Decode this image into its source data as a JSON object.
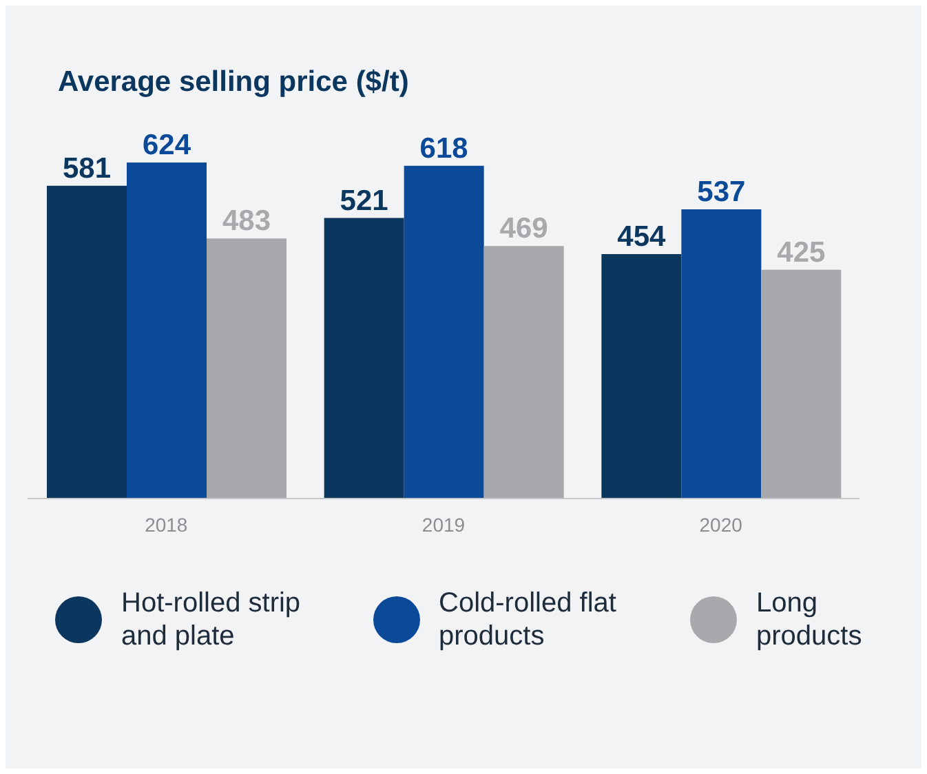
{
  "chart_data": {
    "type": "bar",
    "title": "Average selling price ($/t)",
    "categories": [
      "2018",
      "2019",
      "2020"
    ],
    "series": [
      {
        "name": "Hot-rolled strip and plate",
        "color": "#0b375f",
        "values": [
          581,
          521,
          454
        ]
      },
      {
        "name": "Cold-rolled flat products",
        "color": "#0b4a98",
        "values": [
          624,
          618,
          537
        ]
      },
      {
        "name": "Long products",
        "color": "#a8a9ac",
        "values": [
          483,
          469,
          425
        ]
      }
    ],
    "data_labels": true,
    "legend": "bottom",
    "grid": false
  }
}
